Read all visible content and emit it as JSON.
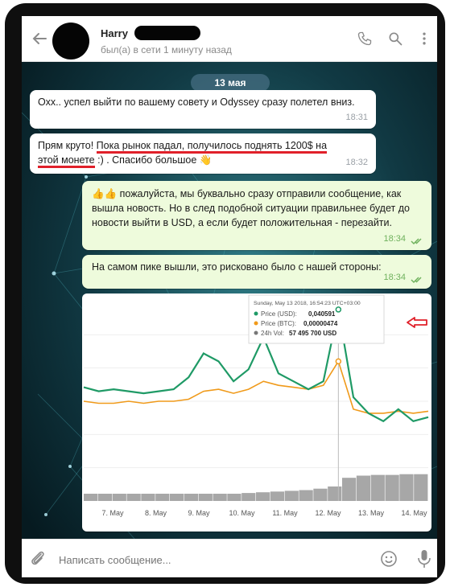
{
  "header": {
    "contact_name": "Harry",
    "status": "был(а) в сети 1 минуту назад"
  },
  "date_separator": "13 мая",
  "messages": [
    {
      "direction": "in",
      "text": "Охх.. успел выйти по вашему совету и Odyssey сразу полетел вниз.",
      "time": "18:31"
    },
    {
      "direction": "in",
      "text_before": "Прям круто! ",
      "text_mark1": "Пока рынок падал, получилось поднять 1200$ на",
      "text_mark2": "этой монете",
      "text_after": " :) . Спасибо большое",
      "emoji": "👋",
      "time": "18:32"
    },
    {
      "direction": "out",
      "emoji": "👍👍",
      "text": " пожалуйста, мы буквально сразу отправили сообщение, как вышла новость. Но в след  подобной ситуации правильнее будет до новости выйти в USD, а если будет положительная - перезайти.",
      "time": "18:34"
    },
    {
      "direction": "out",
      "text": "На самом пике вышли, это рисковано было с нашей стороны:",
      "time": "18:34"
    }
  ],
  "chart_data": {
    "type": "line",
    "x_ticks": [
      "7. May",
      "8. May",
      "9. May",
      "10. May",
      "11. May",
      "12. May",
      "13. May",
      "14. May"
    ],
    "tooltip": {
      "timestamp": "Sunday, May 13 2018, 16:54:23 UTC+03:00",
      "price_usd_label": "Price (USD):",
      "price_usd_value": "0,040591",
      "price_btc_label": "Price (BTC):",
      "price_btc_value": "0,00000474",
      "volume_label": "24h Vol:",
      "volume_value": "57 495 700 USD"
    },
    "series": [
      {
        "name": "Price (USD)",
        "color": "#1f9a66",
        "values": [
          0.57,
          0.55,
          0.56,
          0.55,
          0.54,
          0.55,
          0.56,
          0.62,
          0.74,
          0.7,
          0.6,
          0.66,
          0.82,
          0.64,
          0.6,
          0.56,
          0.6,
          0.96,
          0.52,
          0.44,
          0.4,
          0.46,
          0.4,
          0.42
        ]
      },
      {
        "name": "Price (BTC)",
        "color": "#f09a1a",
        "values": [
          0.5,
          0.49,
          0.49,
          0.5,
          0.49,
          0.5,
          0.5,
          0.51,
          0.55,
          0.56,
          0.54,
          0.56,
          0.6,
          0.58,
          0.57,
          0.56,
          0.58,
          0.7,
          0.46,
          0.44,
          0.44,
          0.45,
          0.44,
          0.45
        ]
      },
      {
        "name": "24h Vol",
        "color": "#8a8a8a",
        "values": [
          0.1,
          0.1,
          0.1,
          0.1,
          0.1,
          0.1,
          0.1,
          0.1,
          0.1,
          0.1,
          0.1,
          0.11,
          0.12,
          0.13,
          0.14,
          0.15,
          0.17,
          0.2,
          0.32,
          0.35,
          0.36,
          0.36,
          0.37,
          0.37
        ]
      }
    ]
  },
  "input": {
    "placeholder": "Написать сообщение..."
  },
  "colors": {
    "accent_green": "#1f9a66",
    "btc_orange": "#f09a1a",
    "annotation_red": "#e0202a"
  }
}
